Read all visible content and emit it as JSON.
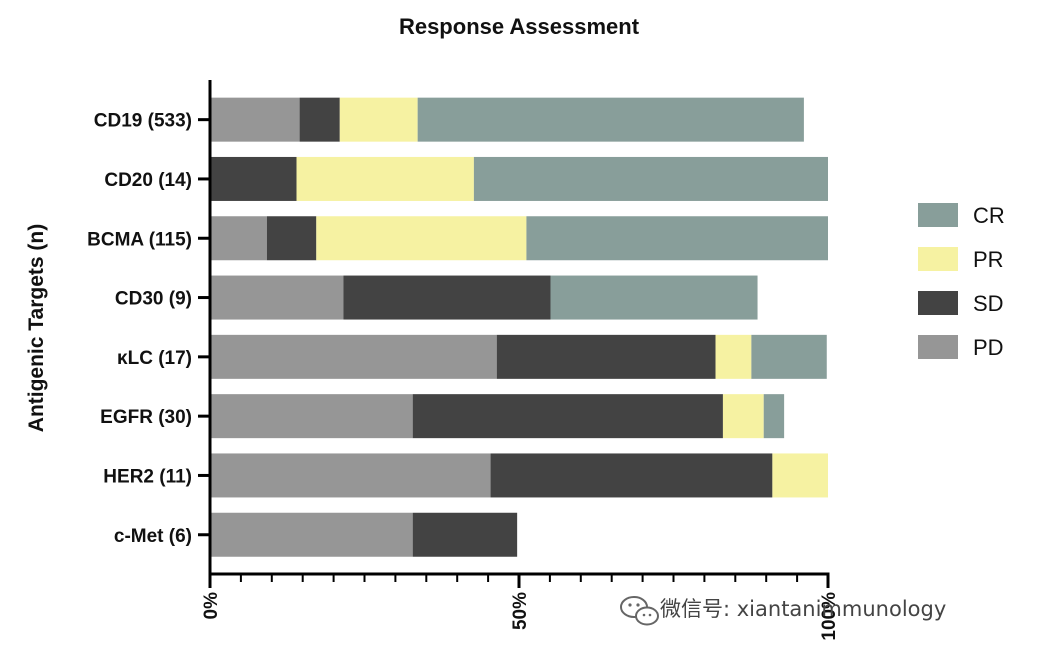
{
  "chart_data": {
    "type": "bar",
    "orientation": "horizontal",
    "stacked": true,
    "title": "Response Assessment",
    "ylabel": "Antigenic Targets (n)",
    "xlabel": "",
    "xlim": [
      0,
      100
    ],
    "xticks": [
      "0%",
      "50%",
      "100%"
    ],
    "categories": [
      "CD19 (533)",
      "CD20 (14)",
      "BCMA (115)",
      "CD30 (9)",
      "κLC (17)",
      "EGFR (30)",
      "HER2 (11)",
      "c-Met (6)"
    ],
    "series": [
      {
        "name": "PD",
        "color": "#969696",
        "values": [
          14.5,
          0,
          9.2,
          21.6,
          46.4,
          32.8,
          45.4,
          32.8
        ]
      },
      {
        "name": "SD",
        "color": "#434343",
        "values": [
          6.5,
          14.0,
          8.0,
          33.5,
          35.4,
          50.2,
          45.6,
          16.9
        ]
      },
      {
        "name": "PR",
        "color": "#f6f2a2",
        "values": [
          12.6,
          28.7,
          34.0,
          0,
          5.8,
          6.6,
          9.0,
          0
        ]
      },
      {
        "name": "CR",
        "color": "#889e9a",
        "values": [
          62.5,
          57.3,
          48.8,
          33.5,
          12.2,
          3.3,
          0,
          0
        ]
      }
    ],
    "legend": {
      "position": "right",
      "order": [
        "CR",
        "PR",
        "SD",
        "PD"
      ]
    },
    "grid": false
  },
  "watermark": {
    "icon": "wechat-icon",
    "text": "微信号: xiantanimmunology"
  }
}
